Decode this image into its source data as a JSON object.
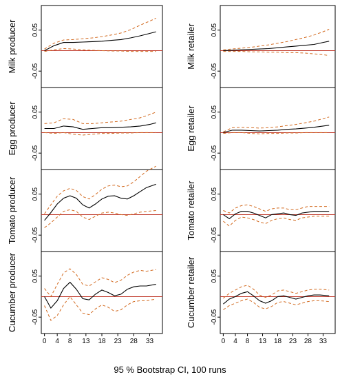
{
  "caption": "95 % Bootstrap CI,  100 runs",
  "colors": {
    "estimate": "#000000",
    "ci": "#d2691e",
    "zero": "#c0392b",
    "frame": "#000000"
  },
  "chart_data": {
    "type": "line",
    "x_ticks": [
      0,
      4,
      8,
      13,
      18,
      23,
      28,
      33
    ],
    "xlim": [
      -1,
      37
    ],
    "y_ticks": [
      -0.05,
      0.05
    ],
    "y_tick_labels": [
      "-0.05",
      "0.05"
    ],
    "ylim": [
      -0.09,
      0.11
    ],
    "grid": false,
    "legend": "none",
    "panels": [
      {
        "label": "Milk producer",
        "column": "left",
        "x": [
          0,
          3,
          6,
          9,
          12,
          15,
          18,
          21,
          24,
          27,
          30,
          33,
          35
        ],
        "irf": [
          0.0,
          0.012,
          0.02,
          0.02,
          0.021,
          0.022,
          0.023,
          0.025,
          0.027,
          0.031,
          0.036,
          0.042,
          0.046
        ],
        "upper": [
          0.004,
          0.018,
          0.026,
          0.027,
          0.029,
          0.031,
          0.034,
          0.038,
          0.043,
          0.051,
          0.062,
          0.072,
          0.079
        ],
        "lower": [
          -0.002,
          0.002,
          0.005,
          0.004,
          0.002,
          0.001,
          0.0,
          -0.001,
          -0.001,
          -0.002,
          -0.002,
          -0.002,
          -0.002
        ]
      },
      {
        "label": "Egg producer",
        "column": "left",
        "x": [
          0,
          3,
          6,
          9,
          12,
          15,
          18,
          21,
          24,
          27,
          30,
          33,
          35
        ],
        "irf": [
          0.01,
          0.01,
          0.016,
          0.014,
          0.008,
          0.01,
          0.012,
          0.012,
          0.013,
          0.014,
          0.016,
          0.02,
          0.024
        ],
        "upper": [
          0.022,
          0.024,
          0.034,
          0.032,
          0.022,
          0.022,
          0.024,
          0.026,
          0.028,
          0.032,
          0.036,
          0.044,
          0.05
        ],
        "lower": [
          0.0,
          -0.002,
          0.0,
          -0.004,
          -0.006,
          -0.004,
          -0.002,
          -0.002,
          -0.001,
          -0.001,
          0.0,
          0.0,
          0.0
        ]
      },
      {
        "label": "Tomato producer",
        "column": "left",
        "x": [
          0,
          2,
          4,
          6,
          8,
          10,
          12,
          14,
          16,
          18,
          20,
          22,
          24,
          26,
          28,
          30,
          32,
          35
        ],
        "irf": [
          -0.014,
          0.005,
          0.026,
          0.04,
          0.046,
          0.04,
          0.024,
          0.016,
          0.026,
          0.038,
          0.045,
          0.046,
          0.04,
          0.038,
          0.046,
          0.056,
          0.066,
          0.074
        ],
        "upper": [
          0.002,
          0.024,
          0.045,
          0.058,
          0.064,
          0.059,
          0.044,
          0.038,
          0.049,
          0.062,
          0.07,
          0.072,
          0.068,
          0.07,
          0.08,
          0.093,
          0.106,
          0.118
        ],
        "lower": [
          -0.032,
          -0.02,
          -0.006,
          0.008,
          0.012,
          0.008,
          -0.006,
          -0.012,
          -0.004,
          0.004,
          0.006,
          0.004,
          0.0,
          -0.002,
          0.002,
          0.006,
          0.008,
          0.01
        ]
      },
      {
        "label": "Cucumber producer",
        "column": "left",
        "x": [
          0,
          2,
          4,
          6,
          8,
          10,
          12,
          14,
          16,
          18,
          20,
          22,
          24,
          26,
          28,
          30,
          32,
          35
        ],
        "irf": [
          0.0,
          -0.028,
          -0.01,
          0.02,
          0.035,
          0.018,
          -0.005,
          -0.008,
          0.006,
          0.016,
          0.01,
          0.002,
          0.006,
          0.018,
          0.024,
          0.026,
          0.026,
          0.03
        ],
        "upper": [
          0.02,
          0.0,
          0.03,
          0.058,
          0.068,
          0.054,
          0.03,
          0.026,
          0.036,
          0.046,
          0.042,
          0.034,
          0.04,
          0.052,
          0.06,
          0.064,
          0.062,
          0.066
        ],
        "lower": [
          -0.022,
          -0.058,
          -0.046,
          -0.02,
          0.0,
          -0.02,
          -0.04,
          -0.044,
          -0.03,
          -0.02,
          -0.026,
          -0.036,
          -0.032,
          -0.02,
          -0.012,
          -0.01,
          -0.01,
          -0.006
        ]
      },
      {
        "label": "Milk retailer",
        "column": "right",
        "x": [
          0,
          3,
          6,
          9,
          12,
          15,
          18,
          21,
          24,
          27,
          30,
          33,
          35
        ],
        "irf": [
          0.0,
          0.001,
          0.002,
          0.003,
          0.004,
          0.005,
          0.007,
          0.009,
          0.011,
          0.013,
          0.015,
          0.02,
          0.023
        ],
        "upper": [
          0.002,
          0.004,
          0.006,
          0.008,
          0.011,
          0.014,
          0.018,
          0.022,
          0.027,
          0.032,
          0.038,
          0.046,
          0.052
        ],
        "lower": [
          -0.002,
          -0.002,
          -0.002,
          -0.003,
          -0.003,
          -0.004,
          -0.004,
          -0.005,
          -0.005,
          -0.006,
          -0.008,
          -0.01,
          -0.012
        ]
      },
      {
        "label": "Egg retailer",
        "column": "right",
        "x": [
          0,
          3,
          6,
          9,
          12,
          15,
          18,
          21,
          24,
          27,
          30,
          33,
          35
        ],
        "irf": [
          0.0,
          0.006,
          0.006,
          0.005,
          0.004,
          0.005,
          0.006,
          0.008,
          0.009,
          0.011,
          0.013,
          0.016,
          0.018
        ],
        "upper": [
          0.002,
          0.012,
          0.013,
          0.012,
          0.011,
          0.012,
          0.014,
          0.017,
          0.02,
          0.024,
          0.028,
          0.034,
          0.038
        ],
        "lower": [
          -0.002,
          0.0,
          0.0,
          -0.002,
          -0.003,
          -0.002,
          -0.002,
          -0.001,
          -0.001,
          0.0,
          0.0,
          0.0,
          0.0
        ]
      },
      {
        "label": "Tomato retailer",
        "column": "right",
        "x": [
          0,
          2,
          4,
          6,
          8,
          10,
          12,
          14,
          16,
          18,
          20,
          22,
          24,
          26,
          28,
          30,
          32,
          35
        ],
        "irf": [
          0.0,
          -0.01,
          0.002,
          0.008,
          0.008,
          0.004,
          -0.002,
          -0.008,
          0.0,
          0.002,
          0.004,
          0.0,
          -0.002,
          0.004,
          0.006,
          0.008,
          0.008,
          0.008
        ],
        "upper": [
          0.01,
          0.004,
          0.016,
          0.022,
          0.024,
          0.02,
          0.014,
          0.008,
          0.014,
          0.016,
          0.016,
          0.012,
          0.012,
          0.016,
          0.02,
          0.02,
          0.02,
          0.02
        ],
        "lower": [
          -0.016,
          -0.028,
          -0.014,
          -0.006,
          -0.008,
          -0.012,
          -0.018,
          -0.022,
          -0.014,
          -0.01,
          -0.008,
          -0.012,
          -0.014,
          -0.008,
          -0.006,
          -0.004,
          -0.004,
          -0.004
        ]
      },
      {
        "label": "Cucumber retailer",
        "column": "right",
        "x": [
          0,
          2,
          4,
          6,
          8,
          10,
          12,
          14,
          16,
          18,
          20,
          22,
          24,
          26,
          28,
          30,
          32,
          35
        ],
        "irf": [
          -0.018,
          -0.006,
          0.0,
          0.008,
          0.012,
          0.002,
          -0.01,
          -0.016,
          -0.01,
          0.0,
          0.002,
          -0.002,
          -0.006,
          -0.002,
          0.002,
          0.004,
          0.004,
          0.002
        ],
        "upper": [
          -0.004,
          0.008,
          0.016,
          0.024,
          0.028,
          0.018,
          0.004,
          -0.002,
          0.004,
          0.014,
          0.016,
          0.012,
          0.008,
          0.012,
          0.016,
          0.018,
          0.018,
          0.016
        ],
        "lower": [
          -0.032,
          -0.022,
          -0.016,
          -0.01,
          -0.006,
          -0.014,
          -0.026,
          -0.03,
          -0.024,
          -0.014,
          -0.012,
          -0.016,
          -0.02,
          -0.016,
          -0.012,
          -0.01,
          -0.01,
          -0.012
        ]
      }
    ]
  }
}
